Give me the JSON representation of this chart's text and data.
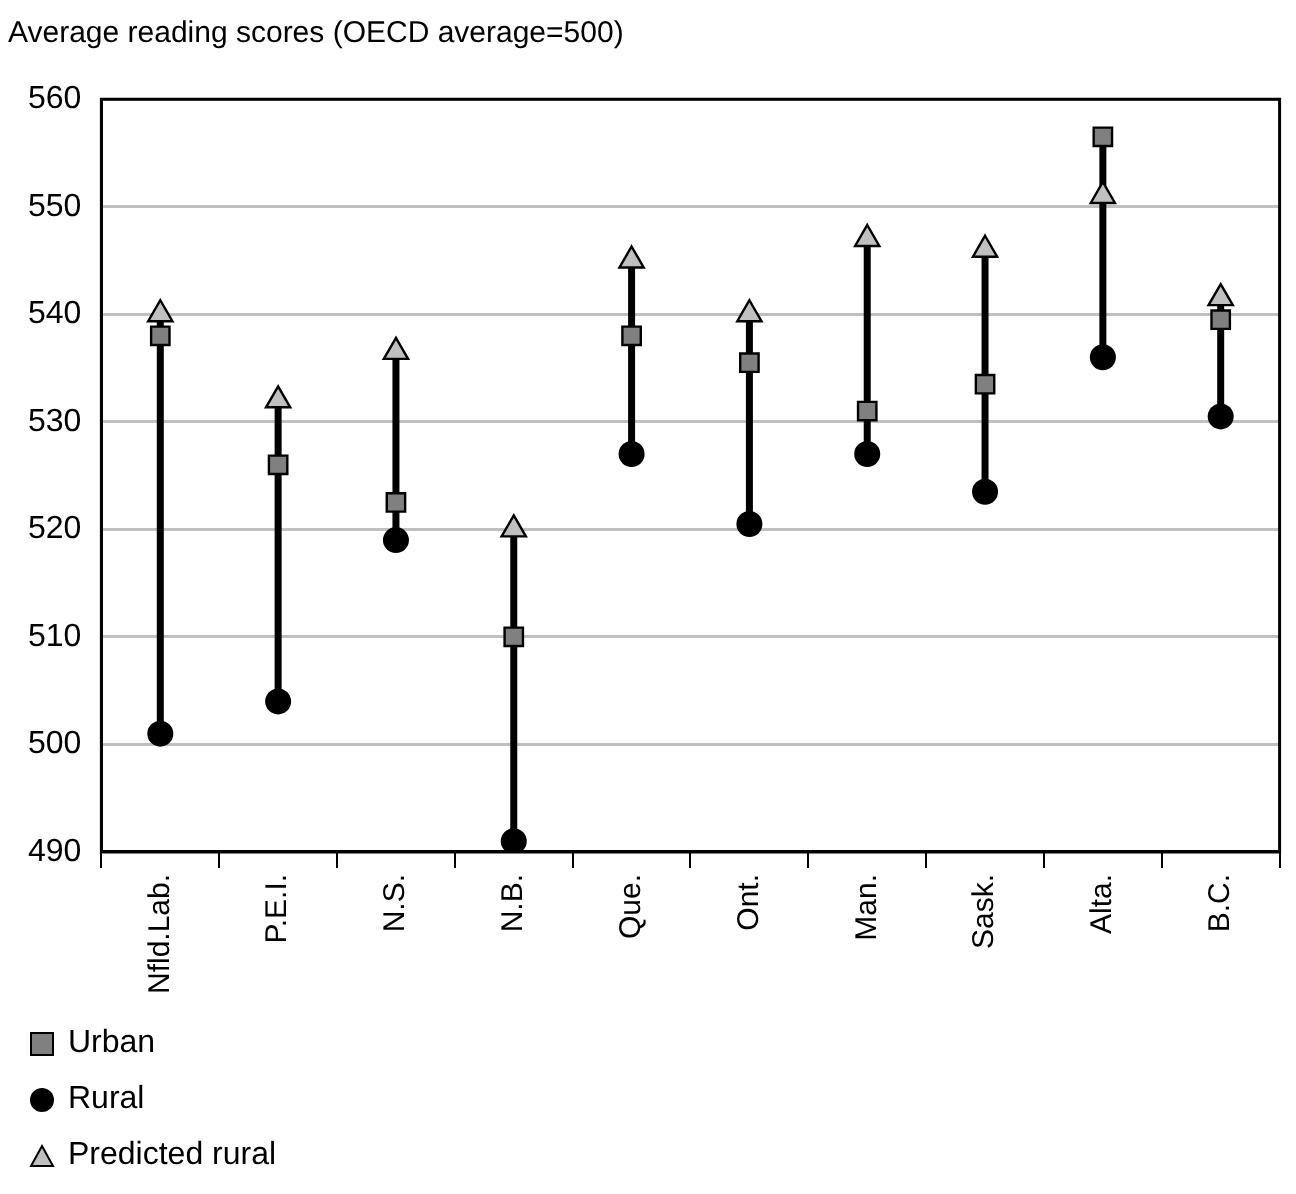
{
  "chart_data": {
    "type": "scatter",
    "title": "Average reading scores (OECD average=500)",
    "categories": [
      "Nfld.Lab.",
      "P.E.I.",
      "N.S.",
      "N.B.",
      "Que.",
      "Ont.",
      "Man.",
      "Sask.",
      "Alta.",
      "B.C."
    ],
    "series": [
      {
        "name": "Urban",
        "marker": "square",
        "color": "#808080",
        "values": [
          538,
          526,
          522.5,
          510,
          538,
          535.5,
          531,
          533.5,
          556.5,
          539.5
        ]
      },
      {
        "name": "Rural",
        "marker": "circle",
        "color": "#000000",
        "values": [
          501,
          504,
          519,
          491,
          527,
          520.5,
          527,
          523.5,
          536,
          530.5
        ]
      },
      {
        "name": "Predicted rural",
        "marker": "triangle",
        "color": "#c0c0c0",
        "values": [
          540,
          532,
          536.5,
          520,
          545,
          540,
          547,
          546,
          551,
          541.5
        ]
      }
    ],
    "ylim": [
      490,
      560
    ],
    "yticks": [
      490,
      500,
      510,
      520,
      530,
      540,
      550,
      560
    ],
    "grid": "y",
    "legend": "bottom left"
  }
}
